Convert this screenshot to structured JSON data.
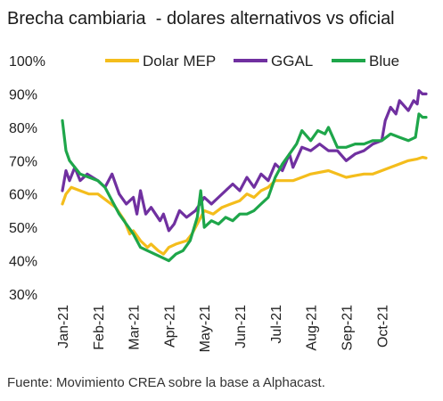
{
  "header": {
    "title": "Brecha cambiaria  - dolares alternativos vs oficial"
  },
  "footer": {
    "source": "Fuente: Movimiento CREA sobre la base a Alphacast."
  },
  "chart_data": {
    "type": "line",
    "title": "Brecha cambiaria  - dolares alternativos vs oficial",
    "xlabel": "",
    "ylabel": "",
    "x_tick_labels": [
      "Jan-21",
      "Feb-21",
      "Mar-21",
      "Apr-21",
      "May-21",
      "Jun-21",
      "Jul-21",
      "Aug-21",
      "Sep-21",
      "Oct-21"
    ],
    "y_tick_labels": [
      "30%",
      "40%",
      "50%",
      "60%",
      "70%",
      "80%",
      "90%",
      "100%"
    ],
    "ylim": [
      30,
      100
    ],
    "y_ticks": [
      30,
      40,
      50,
      60,
      70,
      80,
      90,
      100
    ],
    "xlim": [
      0,
      10.3
    ],
    "legend_position": "top",
    "grid": false,
    "series": [
      {
        "name": "Dolar MEP",
        "color": "#F4BD1C",
        "points": [
          [
            0,
            57
          ],
          [
            0.1,
            60
          ],
          [
            0.25,
            62
          ],
          [
            0.5,
            61
          ],
          [
            0.75,
            60
          ],
          [
            1,
            60
          ],
          [
            1.25,
            58
          ],
          [
            1.5,
            56
          ],
          [
            1.75,
            52
          ],
          [
            1.9,
            48
          ],
          [
            2,
            49
          ],
          [
            2.2,
            46
          ],
          [
            2.4,
            44
          ],
          [
            2.5,
            45
          ],
          [
            2.7,
            43
          ],
          [
            2.85,
            42
          ],
          [
            3,
            44
          ],
          [
            3.2,
            45
          ],
          [
            3.5,
            46
          ],
          [
            3.65,
            48
          ],
          [
            3.8,
            51
          ],
          [
            4,
            55
          ],
          [
            4.25,
            54
          ],
          [
            4.5,
            56
          ],
          [
            4.75,
            57
          ],
          [
            5,
            58
          ],
          [
            5.2,
            60
          ],
          [
            5.4,
            59
          ],
          [
            5.6,
            61
          ],
          [
            5.8,
            62
          ],
          [
            6,
            64
          ],
          [
            6.25,
            64
          ],
          [
            6.5,
            64
          ],
          [
            6.75,
            65
          ],
          [
            7,
            66
          ],
          [
            7.5,
            67
          ],
          [
            8,
            65
          ],
          [
            8.25,
            65.5
          ],
          [
            8.5,
            66
          ],
          [
            8.75,
            66
          ],
          [
            9,
            67
          ],
          [
            9.25,
            68
          ],
          [
            9.5,
            69
          ],
          [
            9.75,
            70
          ],
          [
            10,
            70.5
          ],
          [
            10.15,
            71
          ],
          [
            10.25,
            70.8
          ]
        ]
      },
      {
        "name": "GGAL",
        "color": "#7030A0",
        "points": [
          [
            0,
            61
          ],
          [
            0.1,
            67
          ],
          [
            0.2,
            64
          ],
          [
            0.35,
            68
          ],
          [
            0.5,
            64
          ],
          [
            0.7,
            66
          ],
          [
            1,
            64
          ],
          [
            1.2,
            62
          ],
          [
            1.4,
            66
          ],
          [
            1.6,
            60
          ],
          [
            1.8,
            57
          ],
          [
            2,
            59
          ],
          [
            2.1,
            54
          ],
          [
            2.2,
            61
          ],
          [
            2.35,
            54
          ],
          [
            2.5,
            56
          ],
          [
            2.75,
            52
          ],
          [
            2.85,
            54
          ],
          [
            3,
            49
          ],
          [
            3.15,
            51
          ],
          [
            3.3,
            55
          ],
          [
            3.5,
            53
          ],
          [
            3.75,
            55
          ],
          [
            4,
            59
          ],
          [
            4.2,
            57
          ],
          [
            4.4,
            59
          ],
          [
            4.6,
            61
          ],
          [
            4.8,
            63
          ],
          [
            5,
            61
          ],
          [
            5.2,
            65
          ],
          [
            5.4,
            62
          ],
          [
            5.6,
            66
          ],
          [
            5.8,
            64
          ],
          [
            6,
            69
          ],
          [
            6.2,
            67
          ],
          [
            6.4,
            72
          ],
          [
            6.5,
            68
          ],
          [
            6.75,
            74
          ],
          [
            7,
            73
          ],
          [
            7.25,
            75
          ],
          [
            7.5,
            73
          ],
          [
            7.75,
            73
          ],
          [
            8,
            70
          ],
          [
            8.25,
            72
          ],
          [
            8.5,
            73
          ],
          [
            8.75,
            75
          ],
          [
            9,
            76
          ],
          [
            9.1,
            82
          ],
          [
            9.25,
            86
          ],
          [
            9.4,
            84
          ],
          [
            9.5,
            88
          ],
          [
            9.75,
            85
          ],
          [
            9.9,
            88
          ],
          [
            10,
            87
          ],
          [
            10.05,
            91
          ],
          [
            10.15,
            90
          ],
          [
            10.25,
            90
          ]
        ]
      },
      {
        "name": "Blue",
        "color": "#1EA64A",
        "points": [
          [
            0,
            82
          ],
          [
            0.1,
            73
          ],
          [
            0.2,
            70
          ],
          [
            0.35,
            68
          ],
          [
            0.5,
            66
          ],
          [
            0.75,
            65
          ],
          [
            1,
            64
          ],
          [
            1.2,
            62
          ],
          [
            1.4,
            58
          ],
          [
            1.6,
            54
          ],
          [
            1.8,
            51
          ],
          [
            2,
            48
          ],
          [
            2.2,
            44
          ],
          [
            2.4,
            43
          ],
          [
            2.6,
            42
          ],
          [
            2.8,
            41
          ],
          [
            3,
            40
          ],
          [
            3.2,
            42
          ],
          [
            3.4,
            43
          ],
          [
            3.6,
            46
          ],
          [
            3.8,
            53
          ],
          [
            3.9,
            61
          ],
          [
            4,
            50
          ],
          [
            4.2,
            52
          ],
          [
            4.4,
            51
          ],
          [
            4.6,
            53
          ],
          [
            4.8,
            52
          ],
          [
            5,
            54
          ],
          [
            5.2,
            54
          ],
          [
            5.4,
            55
          ],
          [
            5.6,
            57
          ],
          [
            5.8,
            59
          ],
          [
            6,
            65
          ],
          [
            6.2,
            69
          ],
          [
            6.4,
            72
          ],
          [
            6.6,
            75
          ],
          [
            6.75,
            79
          ],
          [
            7,
            76
          ],
          [
            7.2,
            79
          ],
          [
            7.4,
            78
          ],
          [
            7.5,
            80
          ],
          [
            7.75,
            74
          ],
          [
            8,
            74
          ],
          [
            8.25,
            75
          ],
          [
            8.5,
            75
          ],
          [
            8.75,
            76
          ],
          [
            9,
            76
          ],
          [
            9.25,
            78
          ],
          [
            9.5,
            77
          ],
          [
            9.75,
            76
          ],
          [
            9.95,
            77
          ],
          [
            10.05,
            84
          ],
          [
            10.15,
            83
          ],
          [
            10.25,
            83
          ]
        ]
      }
    ]
  }
}
